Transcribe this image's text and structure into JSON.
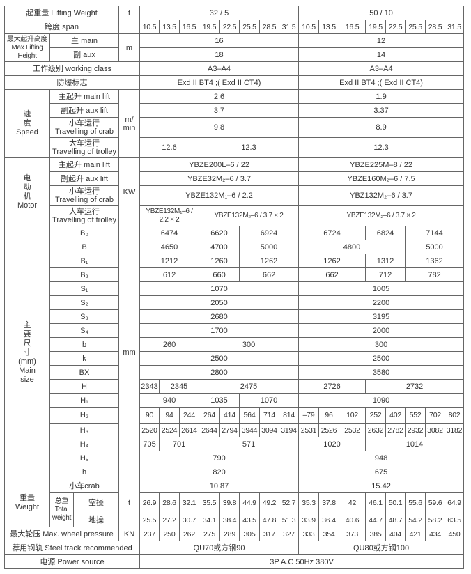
{
  "lifting_weight": {
    "label": "起重量 Lifting Weight",
    "unit": "t",
    "values": [
      "32 / 5",
      "50 / 10"
    ]
  },
  "span": {
    "label": "跨度 span",
    "values": [
      "10.5",
      "13.5",
      "16.5",
      "19.5",
      "22.5",
      "25.5",
      "28.5",
      "31.5",
      "10.5",
      "13.5",
      "16.5",
      "19.5",
      "22.5",
      "25.5",
      "28.5",
      "31.5"
    ]
  },
  "max_lifting_height": {
    "label": "最大起升高度\nMax Lifting\nHeight",
    "unit": "m",
    "main": {
      "label": "主 main",
      "values": [
        "16",
        "12"
      ]
    },
    "aux": {
      "label": "副 aux",
      "values": [
        "18",
        "14"
      ]
    }
  },
  "working_class": {
    "label": "工作级别 working class",
    "values": [
      "A3–A4",
      "A3–A4"
    ]
  },
  "explosion_mark": {
    "label": "防爆标志",
    "values": [
      "Exd II BT4 ;( Exd II CT4)",
      "Exd II BT4 ;( Exd II CT4)"
    ]
  },
  "speed": {
    "label": "速\n度\nSpeed",
    "unit": "m/\nmin",
    "main_lift": {
      "label": "主起升  main lift",
      "values": [
        "2.6",
        "1.9"
      ]
    },
    "aux_lift": {
      "label": "副起升 aux lift",
      "values": [
        "3.7",
        "3.37"
      ]
    },
    "crab": {
      "label": "小车运行\nTravelling of crab",
      "values": [
        "9.8",
        "8.9"
      ]
    },
    "trolley": {
      "label": "大车运行\nTravelling of trolley",
      "values": [
        "12.6",
        "12.3",
        "12.3"
      ]
    }
  },
  "motor": {
    "label": "电\n动\n机\nMotor",
    "unit": "KW",
    "main_lift": {
      "label": "主起升  main lift",
      "values": [
        "YBZE200L–6 / 22",
        "YBZE225M–8 / 22"
      ]
    },
    "aux_lift": {
      "label": "副起升 aux lift",
      "values": [
        "YBZE32M₂–6 / 3.7",
        "YBZE160M₂–6 / 7.5"
      ]
    },
    "crab": {
      "label": "小车运行\nTravelling of crab",
      "values": [
        "YBZE132M₁–6 / 2.2",
        "YBZ132M₂–6 / 3.7"
      ]
    },
    "trolley": {
      "label": "大车运行\nTravelling of trolley",
      "values": [
        "YBZE132M₁–6 /\n2.2 × 2",
        "YBZE132M₂–6 / 3.7 × 2",
        "YBZE132M₂–6 / 3.7 × 2"
      ]
    }
  },
  "main_size": {
    "label": "主\n要\n尺\n寸\n(mm)\nMain\nsize",
    "unit": "mm",
    "rows": [
      {
        "label": "B₀",
        "values": [
          "6474",
          "6620",
          "6924",
          "6724",
          "6824",
          "7144"
        ]
      },
      {
        "label": "B",
        "values": [
          "4650",
          "4700",
          "5000",
          "4800",
          "5000"
        ]
      },
      {
        "label": "B₁",
        "values": [
          "1212",
          "1260",
          "1262",
          "1262",
          "1312",
          "1362"
        ]
      },
      {
        "label": "B₂",
        "values": [
          "612",
          "660",
          "662",
          "662",
          "712",
          "782"
        ]
      },
      {
        "label": "S₁",
        "values": [
          "1070",
          "1005"
        ]
      },
      {
        "label": "S₂",
        "values": [
          "2050",
          "2200"
        ]
      },
      {
        "label": "S₃",
        "values": [
          "2680",
          "3195"
        ]
      },
      {
        "label": "S₄",
        "values": [
          "1700",
          "2000"
        ]
      },
      {
        "label": "b",
        "values": [
          "260",
          "300",
          "300"
        ]
      },
      {
        "label": "k",
        "values": [
          "2500",
          "2500"
        ]
      },
      {
        "label": "BX",
        "values": [
          "2800",
          "3580"
        ]
      },
      {
        "label": "H",
        "values": [
          "2343",
          "2345",
          "2475",
          "2726",
          "2732"
        ]
      },
      {
        "label": "H₁",
        "values": [
          "940",
          "1035",
          "1070",
          "1090"
        ]
      },
      {
        "label": "H₂",
        "values": [
          "90",
          "94",
          "244",
          "264",
          "414",
          "564",
          "714",
          "814",
          "–79",
          "96",
          "102",
          "252",
          "402",
          "552",
          "702",
          "802"
        ]
      },
      {
        "label": "H₃",
        "values": [
          "2520",
          "2524",
          "2614",
          "2644",
          "2794",
          "3944",
          "3094",
          "3194",
          "2531",
          "2526",
          "2532",
          "2632",
          "2782",
          "2932",
          "3082",
          "3182"
        ]
      },
      {
        "label": "H₄",
        "values": [
          "705",
          "701",
          "571",
          "1020",
          "1014"
        ]
      },
      {
        "label": "H₅",
        "values": [
          "790",
          "948"
        ]
      },
      {
        "label": "h",
        "values": [
          "820",
          "675"
        ]
      }
    ]
  },
  "weight": {
    "label": "重量\nWeight",
    "unit": "t",
    "crab": {
      "label": "小车crab",
      "values": [
        "10.87",
        "15.42"
      ]
    },
    "total_label": "总重\nTotal\nweight",
    "empty": {
      "label": "空操",
      "values": [
        "26.9",
        "28.6",
        "32.1",
        "35.5",
        "39.8",
        "44.9",
        "49.2",
        "52.7",
        "35.3",
        "37.8",
        "42",
        "46.1",
        "50.1",
        "55.6",
        "59.6",
        "64.9"
      ]
    },
    "ground": {
      "label": "地操",
      "values": [
        "25.5",
        "27.2",
        "30.7",
        "34.1",
        "38.4",
        "43.5",
        "47.8",
        "51.3",
        "33.9",
        "36.4",
        "40.6",
        "44.7",
        "48.7",
        "54.2",
        "58.2",
        "63.5"
      ]
    }
  },
  "wheel_pressure": {
    "label": "最大轮压 Max.  wheel pressure",
    "unit": "KN",
    "values": [
      "237",
      "250",
      "262",
      "275",
      "289",
      "305",
      "317",
      "327",
      "333",
      "354",
      "373",
      "385",
      "404",
      "421",
      "434",
      "450"
    ]
  },
  "steel_track": {
    "label": "荐用钢轨 Steel track recommended",
    "values": [
      "QU70或方钢90",
      "QU80或方钢100"
    ]
  },
  "power_source": {
    "label": "电源 Power source",
    "value": "3P    A.C   50Hz   380V"
  }
}
